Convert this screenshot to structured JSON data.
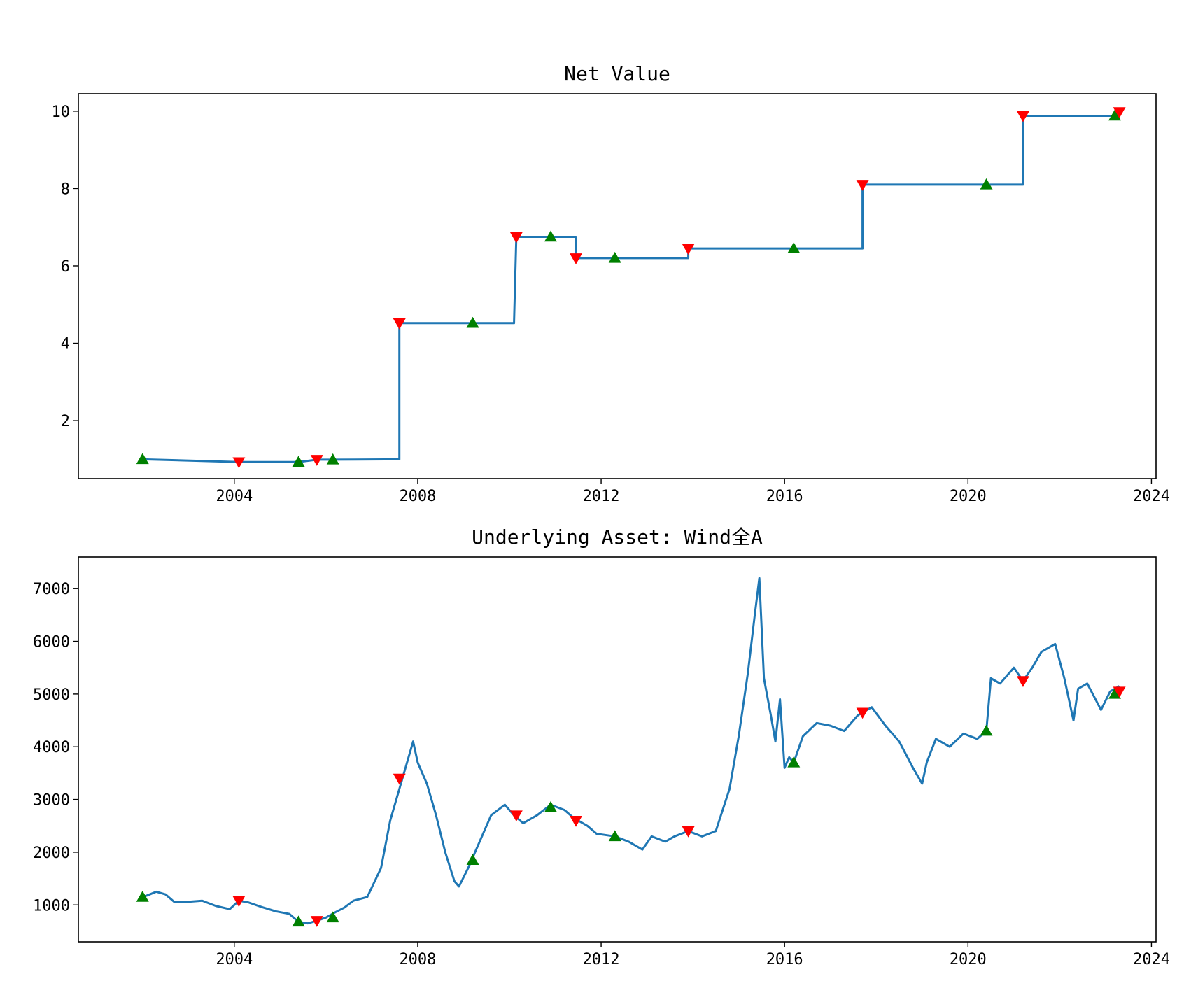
{
  "chart_data": [
    {
      "type": "line",
      "title": "Net Value",
      "xlabel": "",
      "ylabel": "",
      "xlim": [
        2000.6,
        2024.1
      ],
      "ylim": [
        0.5,
        10.45
      ],
      "x_ticks": [
        2004,
        2008,
        2012,
        2016,
        2020,
        2024
      ],
      "y_ticks": [
        2,
        4,
        6,
        8,
        10
      ],
      "grid": false,
      "line_color": "#1f77b4",
      "step_points": [
        [
          2002.0,
          1.0
        ],
        [
          2004.1,
          0.93
        ],
        [
          2005.4,
          0.93
        ],
        [
          2005.8,
          0.99
        ],
        [
          2006.1,
          0.99
        ],
        [
          2007.6,
          1.0
        ],
        [
          2007.6,
          4.52
        ],
        [
          2010.1,
          4.52
        ],
        [
          2010.15,
          6.75
        ],
        [
          2011.45,
          6.75
        ],
        [
          2011.45,
          6.2
        ],
        [
          2013.9,
          6.2
        ],
        [
          2013.9,
          6.45
        ],
        [
          2017.7,
          6.45
        ],
        [
          2017.7,
          8.1
        ],
        [
          2021.2,
          8.1
        ],
        [
          2021.2,
          9.88
        ],
        [
          2023.2,
          9.88
        ],
        [
          2023.3,
          9.98
        ]
      ],
      "buy_markers": {
        "color": "#008000",
        "symbol": "triangle-up",
        "points": [
          [
            2002.0,
            1.0
          ],
          [
            2005.4,
            0.93
          ],
          [
            2006.15,
            0.99
          ],
          [
            2009.2,
            4.52
          ],
          [
            2010.9,
            6.75
          ],
          [
            2012.3,
            6.2
          ],
          [
            2016.2,
            6.45
          ],
          [
            2020.4,
            8.1
          ],
          [
            2023.2,
            9.88
          ]
        ]
      },
      "sell_markers": {
        "color": "#ff0000",
        "symbol": "triangle-down",
        "points": [
          [
            2004.1,
            0.93
          ],
          [
            2005.8,
            0.99
          ],
          [
            2007.6,
            4.52
          ],
          [
            2010.15,
            6.75
          ],
          [
            2011.45,
            6.2
          ],
          [
            2013.9,
            6.45
          ],
          [
            2017.7,
            8.1
          ],
          [
            2021.2,
            9.88
          ],
          [
            2023.3,
            9.98
          ]
        ]
      }
    },
    {
      "type": "line",
      "title": "Underlying Asset: Wind全A",
      "xlabel": "",
      "ylabel": "",
      "xlim": [
        2000.6,
        2024.1
      ],
      "ylim": [
        300,
        7600
      ],
      "x_ticks": [
        2004,
        2008,
        2012,
        2016,
        2020,
        2024
      ],
      "y_ticks": [
        1000,
        2000,
        3000,
        4000,
        5000,
        6000,
        7000
      ],
      "grid": false,
      "line_color": "#1f77b4",
      "x": [
        2002.0,
        2002.1,
        2002.3,
        2002.5,
        2002.7,
        2003.0,
        2003.3,
        2003.6,
        2003.9,
        2004.1,
        2004.3,
        2004.6,
        2004.9,
        2005.2,
        2005.4,
        2005.6,
        2005.8,
        2006.0,
        2006.2,
        2006.4,
        2006.6,
        2006.9,
        2007.2,
        2007.4,
        2007.6,
        2007.8,
        2007.9,
        2008.0,
        2008.2,
        2008.4,
        2008.6,
        2008.8,
        2008.9,
        2009.1,
        2009.3,
        2009.6,
        2009.9,
        2010.1,
        2010.3,
        2010.6,
        2010.9,
        2011.2,
        2011.4,
        2011.7,
        2011.9,
        2012.3,
        2012.6,
        2012.9,
        2013.1,
        2013.4,
        2013.6,
        2013.9,
        2014.2,
        2014.5,
        2014.8,
        2015.0,
        2015.2,
        2015.35,
        2015.45,
        2015.55,
        2015.7,
        2015.8,
        2015.9,
        2016.0,
        2016.1,
        2016.2,
        2016.4,
        2016.7,
        2017.0,
        2017.3,
        2017.6,
        2017.9,
        2018.2,
        2018.5,
        2018.8,
        2019.0,
        2019.1,
        2019.3,
        2019.6,
        2019.9,
        2020.2,
        2020.4,
        2020.5,
        2020.7,
        2021.0,
        2021.2,
        2021.4,
        2021.6,
        2021.9,
        2022.1,
        2022.3,
        2022.4,
        2022.6,
        2022.9,
        2023.1,
        2023.3
      ],
      "values": [
        1150,
        1180,
        1250,
        1200,
        1050,
        1060,
        1080,
        980,
        920,
        1080,
        1050,
        960,
        880,
        830,
        680,
        650,
        700,
        760,
        860,
        950,
        1080,
        1150,
        1700,
        2600,
        3200,
        3800,
        4100,
        3700,
        3300,
        2700,
        2000,
        1450,
        1350,
        1700,
        2100,
        2700,
        2900,
        2700,
        2550,
        2700,
        2900,
        2800,
        2650,
        2500,
        2350,
        2300,
        2200,
        2050,
        2300,
        2200,
        2300,
        2400,
        2300,
        2400,
        3200,
        4200,
        5400,
        6500,
        7200,
        5300,
        4600,
        4100,
        4900,
        3600,
        3800,
        3700,
        4200,
        4450,
        4400,
        4300,
        4600,
        4750,
        4400,
        4100,
        3600,
        3300,
        3700,
        4150,
        4000,
        4250,
        4150,
        4300,
        5300,
        5200,
        5500,
        5250,
        5500,
        5800,
        5950,
        5300,
        4500,
        5100,
        5200,
        4700,
        5050,
        5150
      ],
      "buy_markers": {
        "color": "#008000",
        "symbol": "triangle-up",
        "points": [
          [
            2002.0,
            1150
          ],
          [
            2005.4,
            680
          ],
          [
            2006.15,
            760
          ],
          [
            2009.2,
            1850
          ],
          [
            2010.9,
            2850
          ],
          [
            2012.3,
            2300
          ],
          [
            2016.2,
            3700
          ],
          [
            2020.4,
            4300
          ],
          [
            2023.2,
            5000
          ]
        ]
      },
      "sell_markers": {
        "color": "#ff0000",
        "symbol": "triangle-down",
        "points": [
          [
            2004.1,
            1080
          ],
          [
            2005.8,
            700
          ],
          [
            2007.6,
            3400
          ],
          [
            2010.15,
            2700
          ],
          [
            2011.45,
            2600
          ],
          [
            2013.9,
            2400
          ],
          [
            2017.7,
            4650
          ],
          [
            2021.2,
            5250
          ],
          [
            2023.3,
            5050
          ]
        ]
      }
    }
  ]
}
